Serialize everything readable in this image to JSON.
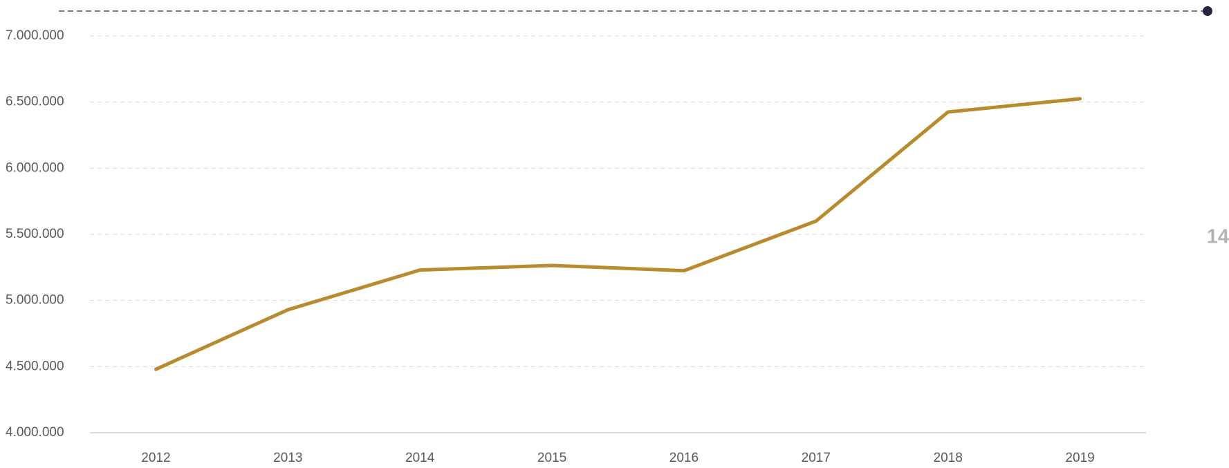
{
  "chart_data": {
    "type": "line",
    "categories": [
      "2012",
      "2013",
      "2014",
      "2015",
      "2016",
      "2017",
      "2018",
      "2019"
    ],
    "series": [
      {
        "color": "#b98b2f",
        "values": [
          4480000,
          4930000,
          5230000,
          5265000,
          5225000,
          5600000,
          6425000,
          6525000
        ]
      }
    ],
    "ylim": [
      4000000,
      7000000
    ],
    "yticks": [
      {
        "value": 4000000,
        "label": "4.000.000"
      },
      {
        "value": 4500000,
        "label": "4.500.000"
      },
      {
        "value": 5000000,
        "label": "5.000.000"
      },
      {
        "value": 5500000,
        "label": "5.500.000"
      },
      {
        "value": 6000000,
        "label": "6.000.000"
      },
      {
        "value": 6500000,
        "label": "6.500.000"
      },
      {
        "value": 7000000,
        "label": "7.000.000"
      }
    ],
    "grid": true,
    "side_label": "14"
  }
}
